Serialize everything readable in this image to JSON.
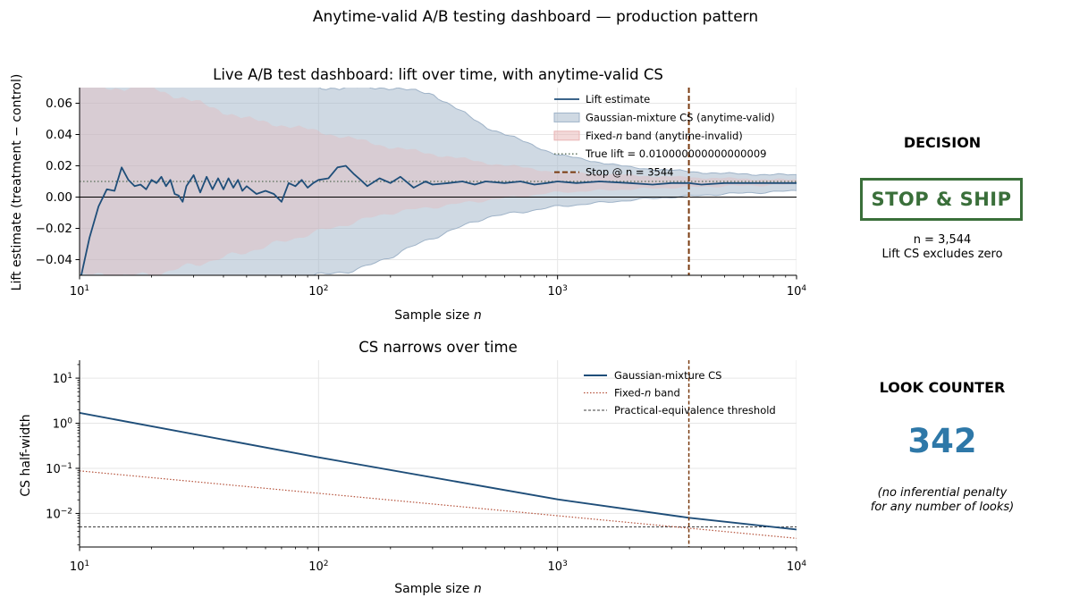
{
  "suptitle": "Anytime-valid A/B testing dashboard — production pattern",
  "chart_data": [
    {
      "type": "line",
      "title": "Live A/B test dashboard: lift over time, with anytime-valid CS",
      "xlabel": "Sample size n",
      "ylabel": "Lift estimate (treatment − control)",
      "xscale": "log",
      "xlim": [
        10,
        10000
      ],
      "ylim": [
        -0.05,
        0.07
      ],
      "xticks": [
        10,
        100,
        1000,
        10000
      ],
      "xtick_labels": [
        [
          "10",
          "1"
        ],
        [
          "10",
          "2"
        ],
        [
          "10",
          "3"
        ],
        [
          "10",
          "4"
        ]
      ],
      "yticks": [
        -0.04,
        -0.02,
        0.0,
        0.02,
        0.04,
        0.06
      ],
      "ytick_labels": [
        "−0.04",
        "−0.02",
        "0.00",
        "0.02",
        "0.04",
        "0.06"
      ],
      "grid": true,
      "legend_position": "top-right",
      "legend": [
        {
          "label": "Lift estimate",
          "kind": "line",
          "color": "#1f4e79"
        },
        {
          "label": "Gaussian-mixture CS (anytime-valid)",
          "kind": "patch",
          "color": "#9fb3c8"
        },
        {
          "label": "Fixed-n band (anytime-invalid)",
          "kind": "patch",
          "color": "#e8b4b4"
        },
        {
          "label": "True lift = 0.010000000000000009",
          "kind": "dotted",
          "color": "#556b55"
        },
        {
          "label": "Stop @ n = 3544",
          "kind": "dashed",
          "color": "#7a3b10"
        }
      ],
      "true_lift": 0.010000000000000009,
      "stop_n": 3544,
      "lift_series": {
        "name": "Lift estimate",
        "x": [
          10,
          11,
          12,
          13,
          14,
          15,
          16,
          17,
          18,
          19,
          20,
          21,
          22,
          23,
          24,
          25,
          26,
          27,
          28,
          30,
          32,
          34,
          36,
          38,
          40,
          42,
          44,
          46,
          48,
          50,
          55,
          60,
          65,
          70,
          75,
          80,
          85,
          90,
          95,
          100,
          110,
          120,
          130,
          140,
          150,
          160,
          180,
          200,
          220,
          250,
          280,
          300,
          350,
          400,
          450,
          500,
          600,
          700,
          800,
          900,
          1000,
          1200,
          1500,
          2000,
          2500,
          3000,
          3544,
          4000,
          5000,
          6000,
          7000,
          8000,
          9000,
          10000
        ],
        "y": [
          -0.055,
          -0.026,
          -0.006,
          0.005,
          0.004,
          0.019,
          0.011,
          0.007,
          0.008,
          0.005,
          0.011,
          0.009,
          0.013,
          0.007,
          0.011,
          0.002,
          0.001,
          -0.003,
          0.007,
          0.014,
          0.003,
          0.013,
          0.005,
          0.012,
          0.005,
          0.012,
          0.006,
          0.011,
          0.004,
          0.007,
          0.002,
          0.004,
          0.002,
          -0.003,
          0.009,
          0.007,
          0.011,
          0.006,
          0.009,
          0.011,
          0.012,
          0.019,
          0.02,
          0.015,
          0.011,
          0.007,
          0.012,
          0.009,
          0.013,
          0.006,
          0.01,
          0.008,
          0.009,
          0.01,
          0.008,
          0.01,
          0.009,
          0.01,
          0.008,
          0.009,
          0.01,
          0.009,
          0.01,
          0.009,
          0.008,
          0.009,
          0.009,
          0.008,
          0.009,
          0.009,
          0.009,
          0.009,
          0.009,
          0.009
        ]
      },
      "cs_band": {
        "name": "Gaussian-mixture CS (anytime-valid)",
        "x": [
          10,
          20,
          50,
          100,
          150,
          200,
          300,
          500,
          1000,
          2000,
          3000,
          5000,
          10000
        ],
        "lower": [
          -0.2,
          -0.1,
          -0.06,
          -0.05,
          -0.046,
          -0.038,
          -0.026,
          -0.013,
          -0.006,
          -0.002,
          0.0,
          0.002,
          0.004
        ],
        "upper": [
          0.2,
          0.12,
          0.08,
          0.07,
          0.07,
          0.07,
          0.066,
          0.045,
          0.027,
          0.019,
          0.017,
          0.015,
          0.014
        ]
      },
      "fixed_band": {
        "name": "Fixed-n band (anytime-invalid)",
        "x": [
          10,
          20,
          50,
          100,
          200,
          500,
          1000,
          2000,
          3000,
          5000,
          10000
        ],
        "lower": [
          -0.05,
          -0.05,
          -0.035,
          -0.022,
          -0.01,
          -0.002,
          0.003,
          0.005,
          0.006,
          0.007,
          0.008
        ],
        "upper": [
          0.07,
          0.07,
          0.05,
          0.042,
          0.032,
          0.022,
          0.016,
          0.014,
          0.013,
          0.012,
          0.011
        ]
      }
    },
    {
      "type": "line",
      "title": "CS narrows over time",
      "xlabel": "Sample size n",
      "ylabel": "CS half-width",
      "xscale": "log",
      "yscale": "log",
      "xlim": [
        10,
        10000
      ],
      "ylim": [
        0.0018,
        25
      ],
      "xticks": [
        10,
        100,
        1000,
        10000
      ],
      "xtick_labels": [
        [
          "10",
          "1"
        ],
        [
          "10",
          "2"
        ],
        [
          "10",
          "3"
        ],
        [
          "10",
          "4"
        ]
      ],
      "yticks": [
        0.01,
        0.1,
        1,
        10
      ],
      "ytick_labels": [
        [
          "10",
          "−2"
        ],
        [
          "10",
          "−1"
        ],
        [
          "10",
          "0"
        ],
        [
          "10",
          "1"
        ]
      ],
      "grid": true,
      "legend_position": "top-right",
      "legend": [
        {
          "label": "Gaussian-mixture CS",
          "kind": "line",
          "color": "#1f4e79"
        },
        {
          "label": "Fixed-n band",
          "kind": "dotted",
          "color": "#b5523b"
        },
        {
          "label": "Practical-equivalence threshold",
          "kind": "dashed",
          "color": "#000000"
        }
      ],
      "stop_n": 3544,
      "threshold": 0.005,
      "series": [
        {
          "name": "Gaussian-mixture CS",
          "x": [
            10,
            100,
            1000,
            3544,
            10000
          ],
          "y": [
            1.7,
            0.175,
            0.0205,
            0.008,
            0.0044
          ]
        },
        {
          "name": "Fixed-n band",
          "x": [
            10,
            100,
            1000,
            10000
          ],
          "y": [
            0.088,
            0.028,
            0.0089,
            0.0028
          ]
        }
      ]
    }
  ],
  "decision": {
    "title": "DECISION",
    "verdict": "STOP & SHIP",
    "n_text": "n = 3,544",
    "note": "Lift CS excludes zero",
    "color": "#3a6f3a"
  },
  "looks": {
    "title": "LOOK COUNTER",
    "count": "342",
    "note_line1": "(no inferential penalty",
    "note_line2": "for any number of looks)",
    "color": "#2e78a8"
  }
}
